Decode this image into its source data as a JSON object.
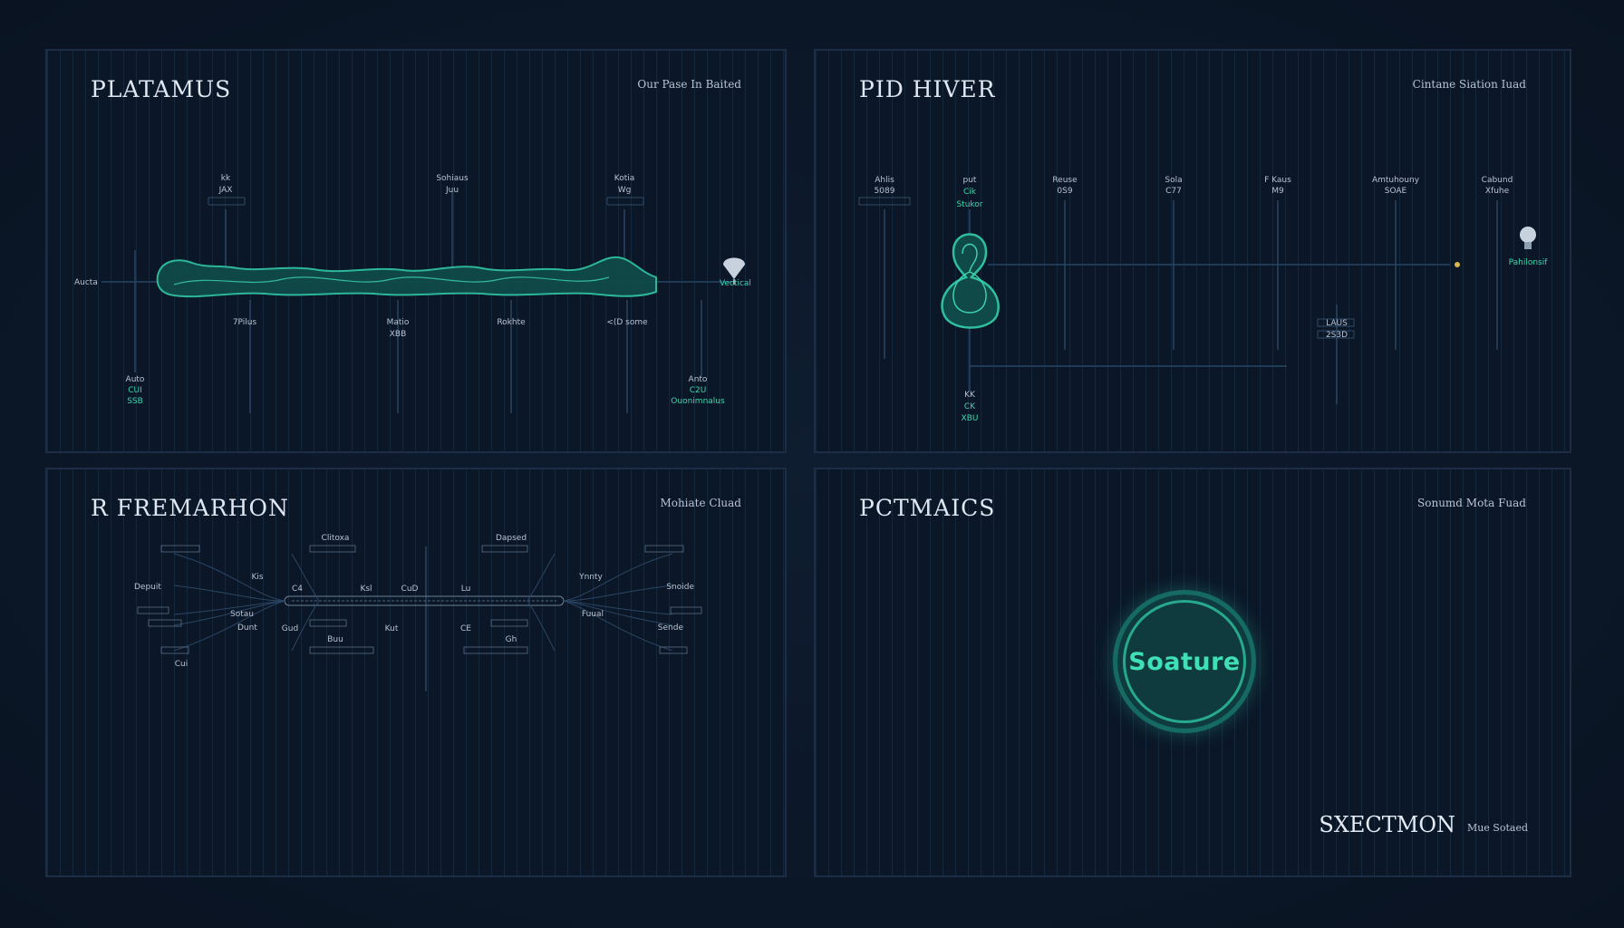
{
  "panels": {
    "top_left": {
      "title": "PLATAMUS",
      "corner_label": "Our Pase In Baited",
      "labels_top": [
        "kk",
        "Sohiaus",
        "Kotia"
      ],
      "labels_mid_top": [
        "JAX",
        "Juu",
        "Wg"
      ],
      "labels_below": [
        "7Pilus",
        "Matio",
        "Rokhte",
        "<(D some"
      ],
      "labels_below_sub": [
        "",
        "XBB",
        "",
        ""
      ],
      "left_label": "Aucta",
      "right_label": "Vectical",
      "bottom_left": [
        "Auto",
        "CUI",
        "SSB"
      ],
      "bottom_right": [
        "Anto",
        "C2U",
        "Ouonimnalus"
      ]
    },
    "top_right": {
      "title": "PID HIVER",
      "corner_label": "Cintane Siation Iuad",
      "nodes": [
        {
          "name": "Ahlis",
          "value": "5089"
        },
        {
          "name": "put",
          "value": "Cik"
        },
        {
          "name": "Reuse",
          "value": "0S9"
        },
        {
          "name": "Sola",
          "value": "C77"
        },
        {
          "name": "F Kaus",
          "value": "M9"
        },
        {
          "name": "Amtuhouny",
          "value": "SOAE"
        },
        {
          "name": "Cabund",
          "value": "Xfuhe"
        }
      ],
      "node_sub_teal": "Stukor",
      "right_label": "Pahilonsif",
      "center_label": [
        "LAUS",
        "2S3D"
      ],
      "bottom_label": [
        "KK",
        "CK",
        "XBU"
      ]
    },
    "bottom_left": {
      "title": "R FREMARHON",
      "corner_label": "Mohiate Cluad",
      "top_labels": [
        "Clitoxa",
        "Dapsed"
      ],
      "left_labels": [
        "Depuit",
        "Sotau",
        "Dunt"
      ],
      "right_labels": [
        "Snoide",
        "Fuual",
        "Sende"
      ],
      "inner_labels": [
        "Kis",
        "C4",
        "Ksl",
        "CuD",
        "Lu",
        "Ynnty",
        "Gud",
        "Kut",
        "Buu",
        "CE",
        "Gh",
        "Cui"
      ]
    },
    "bottom_right": {
      "title": "PCTMAICS",
      "corner_label": "Sonumd Mota Fuad",
      "badge_label": "Soature",
      "footer_title": "SXECTMON",
      "footer_sub": "Mue Sotaed"
    }
  },
  "colors": {
    "background": "#0b1626",
    "panel_border": "#1c2d45",
    "accent_teal": "#2fbf9f",
    "label_text": "#b7c3d3"
  }
}
